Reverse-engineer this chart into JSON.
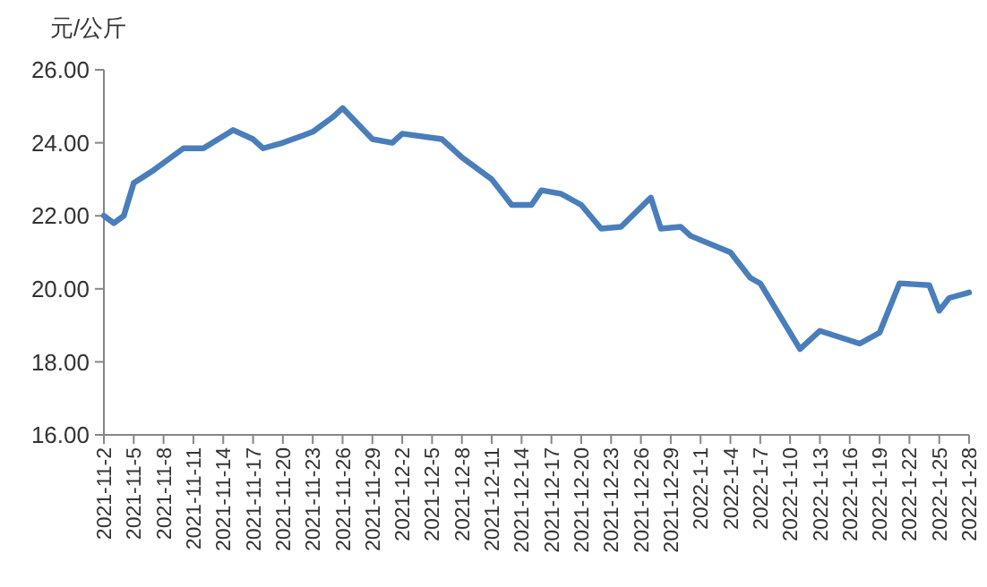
{
  "chart_data": {
    "type": "line",
    "ylabel": "元/公斤",
    "grid": false,
    "marker": "none",
    "line_style": "solid",
    "x": [
      "2021-11-02",
      "2021-11-03",
      "2021-11-04",
      "2021-11-05",
      "2021-11-07",
      "2021-11-08",
      "2021-11-10",
      "2021-11-12",
      "2021-11-15",
      "2021-11-17",
      "2021-11-18",
      "2021-11-20",
      "2021-11-22",
      "2021-11-23",
      "2021-11-25",
      "2021-11-26",
      "2021-11-29",
      "2021-12-01",
      "2021-12-02",
      "2021-12-06",
      "2021-12-08",
      "2021-12-11",
      "2021-12-13",
      "2021-12-15",
      "2021-12-16",
      "2021-12-18",
      "2021-12-20",
      "2021-12-22",
      "2021-12-24",
      "2021-12-27",
      "2021-12-28",
      "2021-12-30",
      "2021-12-31",
      "2022-01-04",
      "2022-01-06",
      "2022-01-07",
      "2022-01-11",
      "2022-01-13",
      "2022-01-17",
      "2022-01-19",
      "2022-01-21",
      "2022-01-24",
      "2022-01-25",
      "2022-01-26",
      "2022-01-28"
    ],
    "series": [
      {
        "color": "#4a7ebb",
        "values": [
          22.0,
          21.8,
          22.0,
          22.9,
          23.25,
          23.45,
          23.85,
          23.85,
          24.35,
          24.1,
          23.85,
          24.0,
          24.2,
          24.3,
          24.7,
          24.95,
          24.1,
          24.0,
          24.25,
          24.1,
          23.6,
          23.0,
          22.3,
          22.3,
          22.7,
          22.6,
          22.3,
          21.65,
          21.7,
          22.5,
          21.65,
          21.7,
          21.45,
          21.0,
          20.3,
          20.15,
          18.35,
          18.85,
          18.5,
          18.8,
          20.15,
          20.1,
          19.4,
          19.75,
          19.9
        ]
      }
    ],
    "xlim": [
      "2021-11-02",
      "2022-01-28"
    ],
    "xticks": [
      {
        "value": "2021-11-02",
        "label": "2021-11-2"
      },
      {
        "value": "2021-11-05",
        "label": "2021-11-5"
      },
      {
        "value": "2021-11-08",
        "label": "2021-11-8"
      },
      {
        "value": "2021-11-11",
        "label": "2021-11-11"
      },
      {
        "value": "2021-11-14",
        "label": "2021-11-14"
      },
      {
        "value": "2021-11-17",
        "label": "2021-11-17"
      },
      {
        "value": "2021-11-20",
        "label": "2021-11-20"
      },
      {
        "value": "2021-11-23",
        "label": "2021-11-23"
      },
      {
        "value": "2021-11-26",
        "label": "2021-11-26"
      },
      {
        "value": "2021-11-29",
        "label": "2021-11-29"
      },
      {
        "value": "2021-12-02",
        "label": "2021-12-2"
      },
      {
        "value": "2021-12-05",
        "label": "2021-12-5"
      },
      {
        "value": "2021-12-08",
        "label": "2021-12-8"
      },
      {
        "value": "2021-12-11",
        "label": "2021-12-11"
      },
      {
        "value": "2021-12-14",
        "label": "2021-12-14"
      },
      {
        "value": "2021-12-17",
        "label": "2021-12-17"
      },
      {
        "value": "2021-12-20",
        "label": "2021-12-20"
      },
      {
        "value": "2021-12-23",
        "label": "2021-12-23"
      },
      {
        "value": "2021-12-26",
        "label": "2021-12-26"
      },
      {
        "value": "2021-12-29",
        "label": "2021-12-29"
      },
      {
        "value": "2022-01-01",
        "label": "2022-1-1"
      },
      {
        "value": "2022-01-04",
        "label": "2022-1-4"
      },
      {
        "value": "2022-01-07",
        "label": "2022-1-7"
      },
      {
        "value": "2022-01-10",
        "label": "2022-1-10"
      },
      {
        "value": "2022-01-13",
        "label": "2022-1-13"
      },
      {
        "value": "2022-01-16",
        "label": "2022-1-16"
      },
      {
        "value": "2022-01-19",
        "label": "2022-1-19"
      },
      {
        "value": "2022-01-22",
        "label": "2022-1-22"
      },
      {
        "value": "2022-01-25",
        "label": "2022-1-25"
      },
      {
        "value": "2022-01-28",
        "label": "2022-1-28"
      }
    ],
    "ylim": [
      16,
      26
    ],
    "yticks": [
      {
        "value": 16,
        "label": "16.00"
      },
      {
        "value": 18,
        "label": "18.00"
      },
      {
        "value": 20,
        "label": "20.00"
      },
      {
        "value": 22,
        "label": "22.00"
      },
      {
        "value": 24,
        "label": "24.00"
      },
      {
        "value": 26,
        "label": "26.00"
      }
    ]
  }
}
